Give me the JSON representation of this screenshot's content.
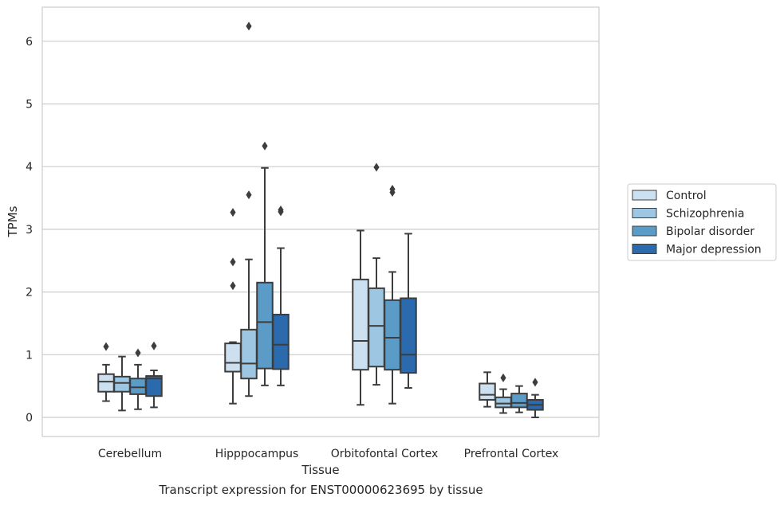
{
  "caption": "Transcript expression for ENST00000623695 by tissue",
  "chart_data": {
    "type": "boxplot",
    "xlabel": "Tissue",
    "ylabel": "TPMs",
    "ylim": [
      -0.3,
      6.55
    ],
    "yticks": [
      0,
      1,
      2,
      3,
      4,
      5,
      6
    ],
    "grid": "horizontal",
    "legend_position": "right",
    "categories": [
      "Cerebellum",
      "Hipppocampus",
      "Orbitofontal Cortex",
      "Prefrontal Cortex"
    ],
    "series": [
      {
        "name": "Control",
        "color": "#cde0f0",
        "boxes": [
          {
            "whislo": 0.26,
            "q1": 0.41,
            "med": 0.57,
            "q3": 0.69,
            "whishi": 0.84,
            "fliers": [
              1.13
            ]
          },
          {
            "whislo": 0.22,
            "q1": 0.73,
            "med": 0.87,
            "q3": 1.18,
            "whishi": 1.2,
            "fliers": [
              2.1,
              2.48,
              3.27
            ]
          },
          {
            "whislo": 0.2,
            "q1": 0.76,
            "med": 1.22,
            "q3": 2.2,
            "whishi": 2.98,
            "fliers": []
          },
          {
            "whislo": 0.17,
            "q1": 0.28,
            "med": 0.36,
            "q3": 0.54,
            "whishi": 0.72,
            "fliers": []
          }
        ]
      },
      {
        "name": "Schizophrenia",
        "color": "#9cc6e1",
        "boxes": [
          {
            "whislo": 0.11,
            "q1": 0.41,
            "med": 0.55,
            "q3": 0.65,
            "whishi": 0.97,
            "fliers": []
          },
          {
            "whislo": 0.34,
            "q1": 0.62,
            "med": 0.86,
            "q3": 1.4,
            "whishi": 2.52,
            "fliers": [
              3.55,
              6.24
            ]
          },
          {
            "whislo": 0.52,
            "q1": 0.81,
            "med": 1.46,
            "q3": 2.06,
            "whishi": 2.54,
            "fliers": [
              3.99
            ]
          },
          {
            "whislo": 0.07,
            "q1": 0.16,
            "med": 0.22,
            "q3": 0.32,
            "whishi": 0.45,
            "fliers": [
              0.63
            ]
          }
        ]
      },
      {
        "name": "Bipolar disorder",
        "color": "#5b9bc8",
        "boxes": [
          {
            "whislo": 0.13,
            "q1": 0.37,
            "med": 0.48,
            "q3": 0.62,
            "whishi": 0.84,
            "fliers": [
              1.03
            ]
          },
          {
            "whislo": 0.51,
            "q1": 0.78,
            "med": 1.52,
            "q3": 2.15,
            "whishi": 3.98,
            "fliers": [
              4.33
            ]
          },
          {
            "whislo": 0.22,
            "q1": 0.76,
            "med": 1.27,
            "q3": 1.87,
            "whishi": 2.32,
            "fliers": [
              3.59,
              3.64
            ]
          },
          {
            "whislo": 0.08,
            "q1": 0.16,
            "med": 0.23,
            "q3": 0.38,
            "whishi": 0.5,
            "fliers": []
          }
        ]
      },
      {
        "name": "Major depression",
        "color": "#2a6aad",
        "boxes": [
          {
            "whislo": 0.16,
            "q1": 0.34,
            "med": 0.62,
            "q3": 0.66,
            "whishi": 0.75,
            "fliers": [
              1.14
            ]
          },
          {
            "whislo": 0.51,
            "q1": 0.77,
            "med": 1.16,
            "q3": 1.64,
            "whishi": 2.7,
            "fliers": [
              3.28,
              3.31
            ]
          },
          {
            "whislo": 0.47,
            "q1": 0.71,
            "med": 1.0,
            "q3": 1.9,
            "whishi": 2.93,
            "fliers": []
          },
          {
            "whislo": 0.0,
            "q1": 0.12,
            "med": 0.2,
            "q3": 0.28,
            "whishi": 0.36,
            "fliers": [
              0.56
            ]
          }
        ]
      }
    ]
  }
}
